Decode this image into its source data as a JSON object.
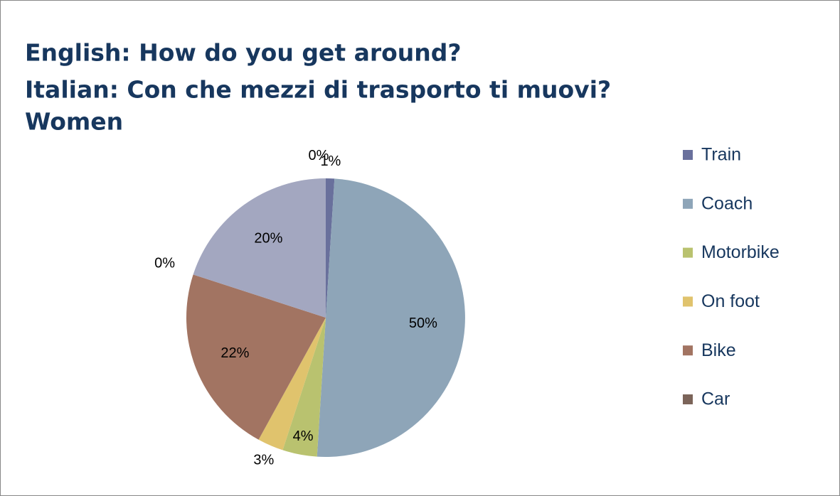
{
  "chart_data": {
    "type": "pie",
    "title": [
      "English: How do you get around?",
      "Italian: Con che mezzi di trasporto ti muovi?",
      "Women"
    ],
    "categories": [
      "Train",
      "Coach",
      "Motorbike",
      "On foot",
      "Bike",
      "Car",
      null,
      null
    ],
    "values": [
      1,
      50,
      4,
      3,
      22,
      0,
      20,
      0
    ],
    "value_labels": [
      "1%",
      "50%",
      "4%",
      "3%",
      "22%",
      "0%",
      "20%",
      "0%"
    ],
    "colors": [
      "#69709c",
      "#8ea5b8",
      "#b9c26f",
      "#e0c36d",
      "#a27462",
      "#7b6459",
      "#a3a7c0",
      "#8b8fb0"
    ],
    "legend": "right"
  }
}
